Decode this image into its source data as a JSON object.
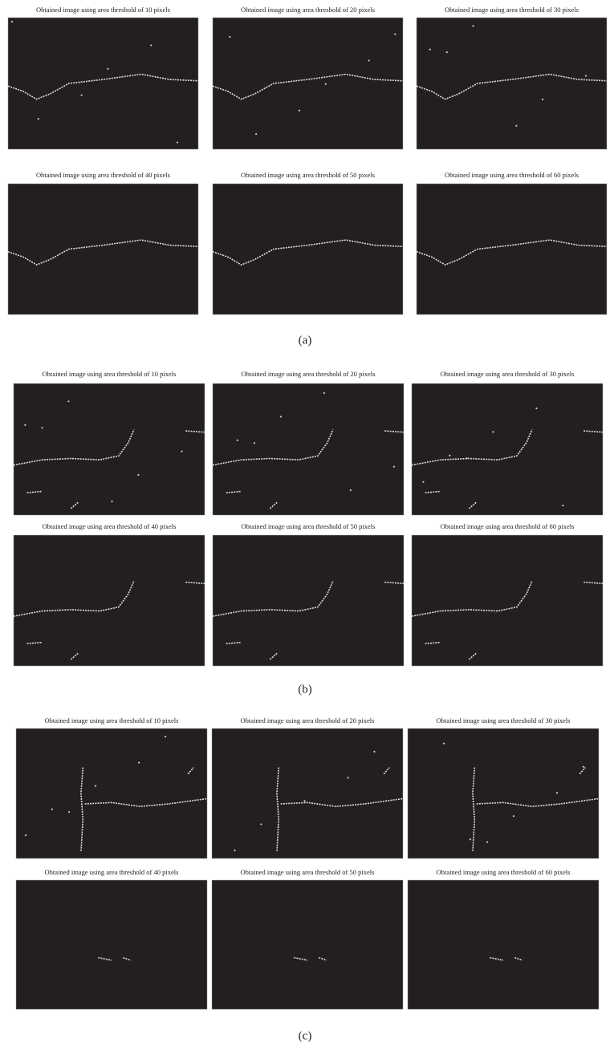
{
  "figures": [
    {
      "label": "(a)",
      "panels": [
        {
          "title": "Obtained image using area threshold of 10 pixels"
        },
        {
          "title": "Obtained image using area threshold of 20 pixels"
        },
        {
          "title": "Obtained image using area threshold of 30 pixels"
        },
        {
          "title": "Obtained image using area threshold of 40 pixels"
        },
        {
          "title": "Obtained image using area threshold of 50 pixels"
        },
        {
          "title": "Obtained image using area threshold of 60 pixels"
        }
      ]
    },
    {
      "label": "(b)",
      "panels": [
        {
          "title": "Obtained image using area threshold of 10 pixels"
        },
        {
          "title": "Obtained image using area threshold of 20 pixels"
        },
        {
          "title": "Obtained image using area threshold of 30 pixels"
        },
        {
          "title": "Obtained image using area threshold of 40 pixels"
        },
        {
          "title": "Obtained image using area threshold of 50 pixels"
        },
        {
          "title": "Obtained image using area threshold of 60 pixels"
        }
      ]
    },
    {
      "label": "(c)",
      "panels": [
        {
          "title": "Obtained image using area threshold of 10 pixels"
        },
        {
          "title": "Obtained image using area threshold of 20 pixels"
        },
        {
          "title": "Obtained image using area threshold of 30 pixels"
        },
        {
          "title": "Obtained image using area threshold of 40 pixels"
        },
        {
          "title": "Obtained image using area threshold of 50 pixels"
        },
        {
          "title": "Obtained image using area threshold of 60 pixels"
        }
      ]
    }
  ]
}
